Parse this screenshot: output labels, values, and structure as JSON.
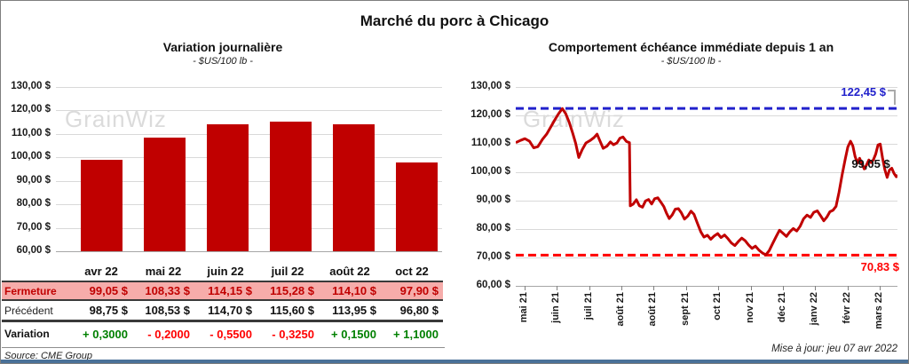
{
  "page": {
    "title": "Marché du porc à Chicago",
    "watermark": "GrainWiz",
    "source": "Source: CME Group",
    "updated": "Mise à jour: jeu 07 avr 2022"
  },
  "colors": {
    "series_red": "#C00000",
    "pink_row_bg": "#F6ACAA",
    "fermeture_text": "#C00000",
    "positive_green": "#008000",
    "negative_red": "#FF0000",
    "ref_blue": "#2121CC",
    "ref_red": "#FF0000",
    "grid_gray": "#D9D9D9",
    "bottom_strip_blue": "#4A7198"
  },
  "chart_data": [
    {
      "type": "bar",
      "title": "Variation journalière",
      "subtitle": "- $US/100 lb -",
      "categories": [
        "avr 22",
        "mai 22",
        "juin 22",
        "juil 22",
        "août 22",
        "oct 22"
      ],
      "values": [
        99.05,
        108.33,
        114.15,
        115.28,
        114.1,
        97.9
      ],
      "ylim": [
        60,
        130
      ],
      "ytick_step": 10,
      "ytick_labels": [
        "130,00 $",
        "120,00 $",
        "110,00 $",
        "100,00 $",
        "90,00 $",
        "80,00 $",
        "70,00 $",
        "60,00 $"
      ],
      "grid": true,
      "bar_color": "#C00000"
    },
    {
      "type": "line",
      "title": "Comportement échéance immédiate depuis 1 an",
      "subtitle": "- $US/100 lb -",
      "ylim": [
        60,
        130
      ],
      "ytick_step": 10,
      "ytick_labels": [
        "130,00 $",
        "120,00 $",
        "110,00 $",
        "100,00 $",
        "90,00 $",
        "80,00 $",
        "70,00 $",
        "60,00 $"
      ],
      "x_tick_labels": [
        "mai 21",
        "juin 21",
        "juil 21",
        "août 21",
        "août 21",
        "sept 21",
        "oct 21",
        "nov 21",
        "déc 21",
        "janv 22",
        "févr 22",
        "mars 22"
      ],
      "grid": true,
      "ref_lines": [
        {
          "value": 122.45,
          "label": "122,45 $",
          "color": "#2121CC",
          "style": "dashed",
          "position": "high"
        },
        {
          "value": 70.83,
          "label": "70,83 $",
          "color": "#FF0000",
          "style": "dashed",
          "position": "low"
        }
      ],
      "end_label": "99,05 $",
      "end_value": 99.05,
      "series": [
        {
          "name": "échéance immédiate",
          "color": "#C00000",
          "points": [
            [
              0.0,
              110.4
            ],
            [
              0.012,
              111.2
            ],
            [
              0.024,
              111.8
            ],
            [
              0.036,
              110.9
            ],
            [
              0.047,
              108.6
            ],
            [
              0.058,
              109.0
            ],
            [
              0.07,
              111.6
            ],
            [
              0.081,
              113.4
            ],
            [
              0.092,
              116.0
            ],
            [
              0.103,
              118.6
            ],
            [
              0.112,
              120.6
            ],
            [
              0.122,
              122.4
            ],
            [
              0.131,
              120.6
            ],
            [
              0.14,
              117.6
            ],
            [
              0.149,
              113.8
            ],
            [
              0.157,
              110.2
            ],
            [
              0.165,
              105.2
            ],
            [
              0.174,
              107.9
            ],
            [
              0.184,
              110.3
            ],
            [
              0.195,
              111.2
            ],
            [
              0.205,
              112.2
            ],
            [
              0.213,
              113.4
            ],
            [
              0.221,
              110.9
            ],
            [
              0.229,
              108.4
            ],
            [
              0.239,
              109.2
            ],
            [
              0.248,
              110.7
            ],
            [
              0.256,
              109.7
            ],
            [
              0.265,
              110.3
            ],
            [
              0.273,
              112.0
            ],
            [
              0.281,
              112.4
            ],
            [
              0.29,
              110.8
            ],
            [
              0.298,
              110.4
            ],
            [
              0.3,
              88.2
            ],
            [
              0.308,
              88.8
            ],
            [
              0.316,
              90.3
            ],
            [
              0.324,
              88.2
            ],
            [
              0.332,
              87.7
            ],
            [
              0.34,
              89.9
            ],
            [
              0.348,
              90.4
            ],
            [
              0.356,
              88.8
            ],
            [
              0.364,
              90.7
            ],
            [
              0.372,
              91.0
            ],
            [
              0.38,
              89.5
            ],
            [
              0.388,
              87.9
            ],
            [
              0.395,
              85.6
            ],
            [
              0.402,
              83.7
            ],
            [
              0.41,
              85.0
            ],
            [
              0.418,
              87.0
            ],
            [
              0.426,
              87.2
            ],
            [
              0.434,
              85.7
            ],
            [
              0.442,
              83.5
            ],
            [
              0.451,
              84.6
            ],
            [
              0.459,
              86.3
            ],
            [
              0.467,
              85.2
            ],
            [
              0.476,
              82.0
            ],
            [
              0.485,
              79.0
            ],
            [
              0.493,
              77.2
            ],
            [
              0.502,
              77.8
            ],
            [
              0.511,
              76.4
            ],
            [
              0.52,
              77.6
            ],
            [
              0.529,
              78.4
            ],
            [
              0.538,
              77.0
            ],
            [
              0.547,
              77.9
            ],
            [
              0.556,
              76.6
            ],
            [
              0.565,
              75.1
            ],
            [
              0.574,
              74.2
            ],
            [
              0.583,
              75.6
            ],
            [
              0.592,
              76.8
            ],
            [
              0.601,
              75.9
            ],
            [
              0.61,
              74.4
            ],
            [
              0.619,
              73.2
            ],
            [
              0.628,
              74.0
            ],
            [
              0.637,
              72.6
            ],
            [
              0.646,
              71.6
            ],
            [
              0.655,
              70.9
            ],
            [
              0.664,
              72.4
            ],
            [
              0.673,
              74.9
            ],
            [
              0.682,
              77.3
            ],
            [
              0.691,
              79.6
            ],
            [
              0.7,
              78.5
            ],
            [
              0.709,
              77.4
            ],
            [
              0.718,
              79.0
            ],
            [
              0.727,
              80.2
            ],
            [
              0.736,
              79.3
            ],
            [
              0.745,
              81.0
            ],
            [
              0.754,
              83.6
            ],
            [
              0.763,
              84.9
            ],
            [
              0.772,
              84.1
            ],
            [
              0.781,
              85.9
            ],
            [
              0.79,
              86.4
            ],
            [
              0.799,
              84.6
            ],
            [
              0.807,
              82.9
            ],
            [
              0.815,
              84.2
            ],
            [
              0.823,
              86.1
            ],
            [
              0.831,
              86.6
            ],
            [
              0.839,
              88.0
            ],
            [
              0.847,
              93.0
            ],
            [
              0.855,
              99.0
            ],
            [
              0.863,
              104.5
            ],
            [
              0.87,
              108.9
            ],
            [
              0.877,
              110.9
            ],
            [
              0.883,
              109.3
            ],
            [
              0.889,
              105.5
            ],
            [
              0.895,
              103.2
            ],
            [
              0.901,
              104.9
            ],
            [
              0.907,
              103.0
            ],
            [
              0.913,
              101.2
            ],
            [
              0.919,
              102.6
            ],
            [
              0.925,
              104.3
            ],
            [
              0.931,
              103.4
            ],
            [
              0.937,
              104.4
            ],
            [
              0.943,
              106.4
            ],
            [
              0.949,
              109.6
            ],
            [
              0.955,
              109.9
            ],
            [
              0.961,
              105.0
            ],
            [
              0.967,
              100.9
            ],
            [
              0.973,
              98.2
            ],
            [
              0.979,
              100.8
            ],
            [
              0.985,
              101.4
            ],
            [
              0.991,
              99.6
            ],
            [
              0.997,
              98.4
            ],
            [
              1.0,
              99.1
            ]
          ]
        }
      ]
    }
  ],
  "table": {
    "columns": [
      "avr 22",
      "mai 22",
      "juin 22",
      "juil 22",
      "août 22",
      "oct 22"
    ],
    "rows": [
      {
        "label": "Fermeture",
        "style": "fermeture",
        "values": [
          "99,05 $",
          "108,33 $",
          "114,15 $",
          "115,28 $",
          "114,10 $",
          "97,90 $"
        ]
      },
      {
        "label": "Précédent",
        "style": "precedent",
        "values": [
          "98,75 $",
          "108,53 $",
          "114,70 $",
          "115,60 $",
          "113,95 $",
          "96,80 $"
        ]
      },
      {
        "label": "Variation",
        "style": "variation",
        "values": [
          {
            "text": "+ 0,3000",
            "dir": "up"
          },
          {
            "text": "- 0,2000",
            "dir": "down"
          },
          {
            "text": "- 0,5500",
            "dir": "down"
          },
          {
            "text": "- 0,3250",
            "dir": "down"
          },
          {
            "text": "+ 0,1500",
            "dir": "up"
          },
          {
            "text": "+ 1,1000",
            "dir": "up"
          }
        ]
      }
    ]
  }
}
